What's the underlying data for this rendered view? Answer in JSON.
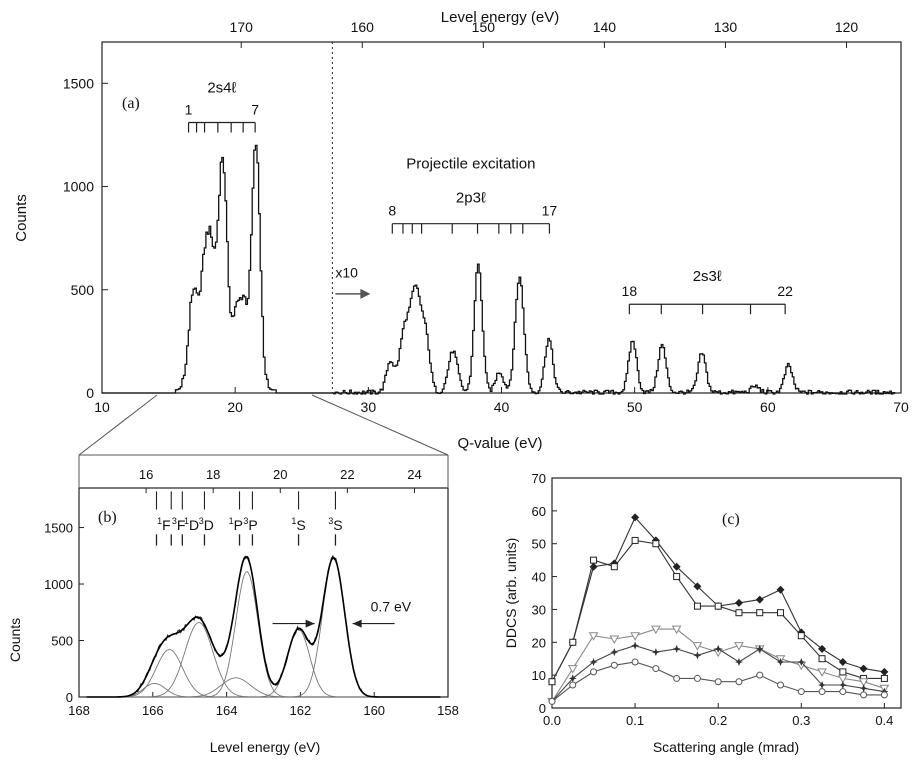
{
  "chart_data": [
    {
      "panel": "(a)",
      "type": "line",
      "xlabel": "Q-value (eV)",
      "top_axis_label": "Level energy (eV)",
      "ylabel": "Counts",
      "xlim": [
        10,
        70
      ],
      "ylim": [
        0,
        1700
      ],
      "top_xlim": [
        181.5,
        115.5
      ],
      "xticks": [
        10,
        20,
        30,
        40,
        50,
        60,
        70
      ],
      "yticks": [
        0,
        500,
        1000,
        1500
      ],
      "top_ticks": [
        170,
        160,
        150,
        140,
        130,
        120
      ],
      "divider_x": 27.3,
      "peaks": [
        {
          "x": 16.8,
          "y": 470,
          "w": 0.35
        },
        {
          "x": 17.7,
          "y": 590,
          "w": 0.35
        },
        {
          "x": 18.2,
          "y": 430,
          "w": 0.3
        },
        {
          "x": 19.0,
          "y": 1120,
          "w": 0.35
        },
        {
          "x": 20.0,
          "y": 330,
          "w": 0.3
        },
        {
          "x": 20.6,
          "y": 390,
          "w": 0.3
        },
        {
          "x": 21.5,
          "y": 1190,
          "w": 0.32
        },
        {
          "x": 31.6,
          "y": 150,
          "w": 0.3
        },
        {
          "x": 32.6,
          "y": 250,
          "w": 0.35
        },
        {
          "x": 33.5,
          "y": 500,
          "w": 0.45
        },
        {
          "x": 34.3,
          "y": 200,
          "w": 0.3
        },
        {
          "x": 36.3,
          "y": 200,
          "w": 0.35
        },
        {
          "x": 38.2,
          "y": 620,
          "w": 0.3
        },
        {
          "x": 39.8,
          "y": 100,
          "w": 0.3
        },
        {
          "x": 41.3,
          "y": 560,
          "w": 0.33
        },
        {
          "x": 43.5,
          "y": 260,
          "w": 0.3
        },
        {
          "x": 49.8,
          "y": 250,
          "w": 0.3
        },
        {
          "x": 52.0,
          "y": 230,
          "w": 0.3
        },
        {
          "x": 55.0,
          "y": 190,
          "w": 0.3
        },
        {
          "x": 59.0,
          "y": 30,
          "w": 0.3
        },
        {
          "x": 61.5,
          "y": 130,
          "w": 0.3
        }
      ],
      "annotations": {
        "label_a": "(a)",
        "group1": {
          "title": "2s4ℓ",
          "first": "1",
          "last": "7",
          "x0": 16.5,
          "x1": 21.5,
          "ticks": [
            16.5,
            17.1,
            17.7,
            18.7,
            19.7,
            20.6,
            21.5
          ],
          "y": 1310
        },
        "proj_title": "Projectile excitation",
        "x10": "x10",
        "group2": {
          "title": "2p3ℓ",
          "first": "8",
          "last": "17",
          "x0": 31.8,
          "x1": 43.6,
          "ticks": [
            31.8,
            32.6,
            33.3,
            34.0,
            36.3,
            38.2,
            39.8,
            40.7,
            41.6,
            43.6
          ],
          "y": 820
        },
        "group3": {
          "title": "2s3ℓ",
          "first": "18",
          "last": "22",
          "x0": 49.6,
          "x1": 61.3,
          "ticks": [
            49.6,
            52.0,
            55.1,
            58.7,
            61.3
          ],
          "y": 430
        }
      }
    },
    {
      "panel": "(b)",
      "type": "line",
      "xlabel": "Level energy (eV)",
      "ylabel": "Counts",
      "xlim": [
        168,
        158
      ],
      "ylim": [
        0,
        1850
      ],
      "top_xlim": [
        14.0,
        25.0
      ],
      "xticks": [
        168,
        166,
        164,
        162,
        160,
        158
      ],
      "yticks": [
        0,
        500,
        1000,
        1500
      ],
      "top_ticks": [
        16,
        18,
        20,
        22,
        24
      ],
      "components": [
        {
          "x": 165.55,
          "y": 420,
          "s": 0.36
        },
        {
          "x": 165.95,
          "y": 120,
          "s": 0.3
        },
        {
          "x": 164.75,
          "y": 660,
          "s": 0.38
        },
        {
          "x": 163.75,
          "y": 170,
          "s": 0.4
        },
        {
          "x": 163.45,
          "y": 1110,
          "s": 0.3
        },
        {
          "x": 162.05,
          "y": 600,
          "s": 0.3
        },
        {
          "x": 161.1,
          "y": 1230,
          "s": 0.3
        }
      ],
      "term_labels": [
        {
          "sup": "1",
          "base": "F",
          "x": 165.7
        },
        {
          "sup": "3",
          "base": "F",
          "x": 165.3
        },
        {
          "sup": "1",
          "base": "D",
          "x": 164.95
        },
        {
          "sup": "3",
          "base": "D",
          "x": 164.55
        },
        {
          "sup": "1",
          "base": "P",
          "x": 163.75
        },
        {
          "sup": "3",
          "base": "P",
          "x": 163.35
        },
        {
          "sup": "1",
          "base": "S",
          "x": 162.05
        },
        {
          "sup": "3",
          "base": "S",
          "x": 161.05
        }
      ],
      "marker_lines": [
        165.9,
        165.5,
        165.2,
        164.6,
        163.65,
        163.3,
        162.05,
        161.05
      ],
      "label_b": "(b)",
      "fwhm_label": "0.7 eV"
    },
    {
      "panel": "(c)",
      "type": "line",
      "xlabel": "Scattering angle (mrad)",
      "ylabel": "DDCS (arb. units)",
      "xlim": [
        0.0,
        0.42
      ],
      "ylim": [
        0,
        70
      ],
      "xticks": [
        0.0,
        0.1,
        0.2,
        0.3,
        0.4
      ],
      "yticks": [
        0,
        10,
        20,
        30,
        40,
        50,
        60,
        70
      ],
      "label_c": "(c)",
      "x": [
        0.0,
        0.025,
        0.05,
        0.075,
        0.1,
        0.125,
        0.15,
        0.175,
        0.2,
        0.225,
        0.25,
        0.275,
        0.3,
        0.325,
        0.35,
        0.375,
        0.4
      ],
      "series": [
        {
          "marker": "diamond-filled",
          "values": [
            8,
            20,
            43,
            44,
            58,
            51,
            43,
            37,
            31,
            32,
            33,
            36,
            23,
            18,
            14,
            12,
            11
          ]
        },
        {
          "marker": "square",
          "values": [
            8,
            20,
            45,
            43,
            51,
            50,
            40,
            31,
            31,
            29,
            29,
            29,
            22,
            15,
            11,
            9,
            9
          ]
        },
        {
          "marker": "triangle-down",
          "values": [
            2,
            12,
            22,
            21,
            22,
            24,
            24,
            19,
            17,
            19,
            18,
            15,
            13,
            11,
            9,
            8,
            6
          ]
        },
        {
          "marker": "star",
          "values": [
            2,
            9,
            14,
            17,
            19,
            17,
            18,
            16,
            18,
            14,
            18,
            14,
            14,
            7,
            7,
            6,
            5
          ]
        },
        {
          "marker": "circle",
          "values": [
            2,
            7,
            11,
            13,
            14,
            12,
            9,
            9,
            8,
            8,
            10,
            7,
            5,
            5,
            5,
            4,
            4
          ]
        }
      ]
    }
  ]
}
